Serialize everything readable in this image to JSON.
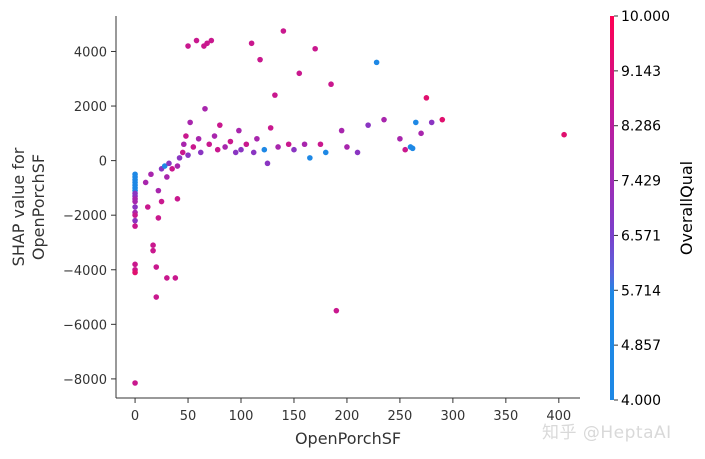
{
  "chart_data": {
    "type": "scatter",
    "xlabel": "OpenPorchSF",
    "ylabel": [
      "SHAP value for",
      "OpenPorchSF"
    ],
    "xlim": [
      -18,
      420
    ],
    "ylim": [
      -8700,
      5300
    ],
    "xticks": [
      0,
      50,
      100,
      150,
      200,
      250,
      300,
      350,
      400
    ],
    "yticks": [
      -8000,
      -6000,
      -4000,
      -2000,
      0,
      2000,
      4000
    ],
    "grid": false,
    "colorbar": {
      "title": "OverallQual",
      "range": [
        4,
        10
      ],
      "ticks": [
        "4.000",
        "4.857",
        "5.714",
        "6.571",
        "7.429",
        "8.286",
        "9.143",
        "10.000"
      ],
      "colors": [
        "#1e88e5",
        "#1e88e5",
        "#1e88e5",
        "#6a59d6",
        "#8a35c2",
        "#a826ad",
        "#c9188e",
        "#e0106e"
      ]
    },
    "points": [
      {
        "x": 0,
        "y": -500,
        "q": 5
      },
      {
        "x": 0,
        "y": -600,
        "q": 5
      },
      {
        "x": 0,
        "y": -700,
        "q": 5
      },
      {
        "x": 0,
        "y": -800,
        "q": 5
      },
      {
        "x": 0,
        "y": -900,
        "q": 4
      },
      {
        "x": 0,
        "y": -1000,
        "q": 6
      },
      {
        "x": 0,
        "y": -1100,
        "q": 6
      },
      {
        "x": 0,
        "y": -1200,
        "q": 7
      },
      {
        "x": 0,
        "y": -1300,
        "q": 7
      },
      {
        "x": 0,
        "y": -1400,
        "q": 8
      },
      {
        "x": 0,
        "y": -1500,
        "q": 8
      },
      {
        "x": 0,
        "y": -1700,
        "q": 7
      },
      {
        "x": 0,
        "y": -1900,
        "q": 8
      },
      {
        "x": 0,
        "y": -2000,
        "q": 9
      },
      {
        "x": 0,
        "y": -2200,
        "q": 7
      },
      {
        "x": 0,
        "y": -2400,
        "q": 9
      },
      {
        "x": 0,
        "y": -3800,
        "q": 9
      },
      {
        "x": 0,
        "y": -4000,
        "q": 9
      },
      {
        "x": 0,
        "y": -4100,
        "q": 10
      },
      {
        "x": 0,
        "y": -8150,
        "q": 9
      },
      {
        "x": 10,
        "y": -800,
        "q": 8
      },
      {
        "x": 12,
        "y": -1700,
        "q": 9
      },
      {
        "x": 15,
        "y": -500,
        "q": 8
      },
      {
        "x": 17,
        "y": -3100,
        "q": 9
      },
      {
        "x": 17,
        "y": -3300,
        "q": 9
      },
      {
        "x": 20,
        "y": -3900,
        "q": 9
      },
      {
        "x": 20,
        "y": -5000,
        "q": 9
      },
      {
        "x": 22,
        "y": -2100,
        "q": 9
      },
      {
        "x": 22,
        "y": -1100,
        "q": 8
      },
      {
        "x": 25,
        "y": -1500,
        "q": 9
      },
      {
        "x": 25,
        "y": -300,
        "q": 7
      },
      {
        "x": 28,
        "y": -200,
        "q": 6
      },
      {
        "x": 30,
        "y": -4300,
        "q": 9
      },
      {
        "x": 30,
        "y": -600,
        "q": 8
      },
      {
        "x": 32,
        "y": -100,
        "q": 7
      },
      {
        "x": 35,
        "y": -300,
        "q": 9
      },
      {
        "x": 38,
        "y": -4300,
        "q": 9
      },
      {
        "x": 40,
        "y": -1400,
        "q": 9
      },
      {
        "x": 40,
        "y": -200,
        "q": 8
      },
      {
        "x": 42,
        "y": 100,
        "q": 7
      },
      {
        "x": 45,
        "y": 300,
        "q": 9
      },
      {
        "x": 46,
        "y": 600,
        "q": 8
      },
      {
        "x": 48,
        "y": 900,
        "q": 9
      },
      {
        "x": 50,
        "y": 4200,
        "q": 9
      },
      {
        "x": 50,
        "y": 200,
        "q": 7
      },
      {
        "x": 52,
        "y": 1400,
        "q": 8
      },
      {
        "x": 55,
        "y": 500,
        "q": 9
      },
      {
        "x": 58,
        "y": 4400,
        "q": 9
      },
      {
        "x": 60,
        "y": 800,
        "q": 8
      },
      {
        "x": 62,
        "y": 300,
        "q": 7
      },
      {
        "x": 65,
        "y": 4200,
        "q": 9
      },
      {
        "x": 66,
        "y": 1900,
        "q": 8
      },
      {
        "x": 68,
        "y": 4300,
        "q": 9
      },
      {
        "x": 70,
        "y": 600,
        "q": 9
      },
      {
        "x": 72,
        "y": 4400,
        "q": 9
      },
      {
        "x": 75,
        "y": 900,
        "q": 8
      },
      {
        "x": 78,
        "y": 400,
        "q": 9
      },
      {
        "x": 80,
        "y": 1300,
        "q": 9
      },
      {
        "x": 85,
        "y": 500,
        "q": 8
      },
      {
        "x": 90,
        "y": 700,
        "q": 9
      },
      {
        "x": 95,
        "y": 300,
        "q": 7
      },
      {
        "x": 98,
        "y": 1100,
        "q": 8
      },
      {
        "x": 100,
        "y": 400,
        "q": 7
      },
      {
        "x": 105,
        "y": 600,
        "q": 9
      },
      {
        "x": 110,
        "y": 4300,
        "q": 9
      },
      {
        "x": 112,
        "y": 300,
        "q": 7
      },
      {
        "x": 115,
        "y": 800,
        "q": 8
      },
      {
        "x": 118,
        "y": 3700,
        "q": 9
      },
      {
        "x": 122,
        "y": 400,
        "q": 6
      },
      {
        "x": 125,
        "y": -100,
        "q": 7
      },
      {
        "x": 128,
        "y": 1200,
        "q": 9
      },
      {
        "x": 132,
        "y": 2400,
        "q": 9
      },
      {
        "x": 135,
        "y": 500,
        "q": 8
      },
      {
        "x": 140,
        "y": 4750,
        "q": 9
      },
      {
        "x": 145,
        "y": 600,
        "q": 9
      },
      {
        "x": 150,
        "y": 400,
        "q": 7
      },
      {
        "x": 155,
        "y": 3200,
        "q": 9
      },
      {
        "x": 160,
        "y": 600,
        "q": 8
      },
      {
        "x": 165,
        "y": 100,
        "q": 6
      },
      {
        "x": 170,
        "y": 4100,
        "q": 9
      },
      {
        "x": 175,
        "y": 600,
        "q": 9
      },
      {
        "x": 180,
        "y": 300,
        "q": 6
      },
      {
        "x": 185,
        "y": 2800,
        "q": 9
      },
      {
        "x": 190,
        "y": -5500,
        "q": 9
      },
      {
        "x": 195,
        "y": 1100,
        "q": 8
      },
      {
        "x": 200,
        "y": 500,
        "q": 8
      },
      {
        "x": 210,
        "y": 300,
        "q": 7
      },
      {
        "x": 220,
        "y": 1300,
        "q": 7
      },
      {
        "x": 228,
        "y": 3600,
        "q": 6
      },
      {
        "x": 235,
        "y": 1500,
        "q": 8
      },
      {
        "x": 250,
        "y": 800,
        "q": 8
      },
      {
        "x": 255,
        "y": 400,
        "q": 9
      },
      {
        "x": 260,
        "y": 500,
        "q": 5
      },
      {
        "x": 262,
        "y": 450,
        "q": 5
      },
      {
        "x": 265,
        "y": 1400,
        "q": 6
      },
      {
        "x": 270,
        "y": 1000,
        "q": 8
      },
      {
        "x": 275,
        "y": 2300,
        "q": 10
      },
      {
        "x": 280,
        "y": 1400,
        "q": 7
      },
      {
        "x": 290,
        "y": 1500,
        "q": 10
      },
      {
        "x": 405,
        "y": 950,
        "q": 10
      }
    ]
  },
  "watermark": "知乎 @HeptaAI"
}
